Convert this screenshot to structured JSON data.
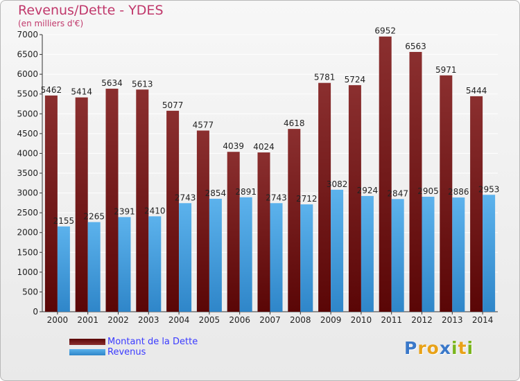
{
  "header": {
    "title": "Revenus/Dette - YDES",
    "subtitle": "(en milliers d'€)"
  },
  "logo": {
    "text": "Proxiti",
    "letters": [
      "P",
      "r",
      "o",
      "x",
      "i",
      "t",
      "i"
    ],
    "letter_colors": [
      "#3a78c9",
      "#e8a219",
      "#e8a219",
      "#3a78c9",
      "#7ab51d",
      "#e8a219",
      "#7ab51d"
    ]
  },
  "colors": {
    "debt": "#7a1e1e",
    "revenue": "#4aa3e0",
    "axis": "#333333",
    "grid": "#ffffff"
  },
  "chart_data": {
    "type": "bar",
    "title": "Revenus/Dette - YDES",
    "subtitle": "(en milliers d'€)",
    "categories": [
      "2000",
      "2001",
      "2002",
      "2003",
      "2004",
      "2005",
      "2006",
      "2007",
      "2008",
      "2009",
      "2010",
      "2011",
      "2012",
      "2013",
      "2014"
    ],
    "series": [
      {
        "name": "Montant de la Dette",
        "values": [
          5462,
          5414,
          5634,
          5613,
          5077,
          4577,
          4039,
          4024,
          4618,
          5781,
          5724,
          6952,
          6563,
          5971,
          5444
        ]
      },
      {
        "name": "Revenus",
        "values": [
          2155,
          2265,
          2391,
          2410,
          2743,
          2854,
          2891,
          2743,
          2712,
          3082,
          2924,
          2847,
          2905,
          2886,
          2953
        ]
      }
    ],
    "ylim": [
      0,
      7000
    ],
    "yticks": [
      0,
      500,
      1000,
      1500,
      2000,
      2500,
      3000,
      3500,
      4000,
      4500,
      5000,
      5500,
      6000,
      6500,
      7000
    ],
    "grid": true,
    "legend_position": "bottom-left"
  }
}
